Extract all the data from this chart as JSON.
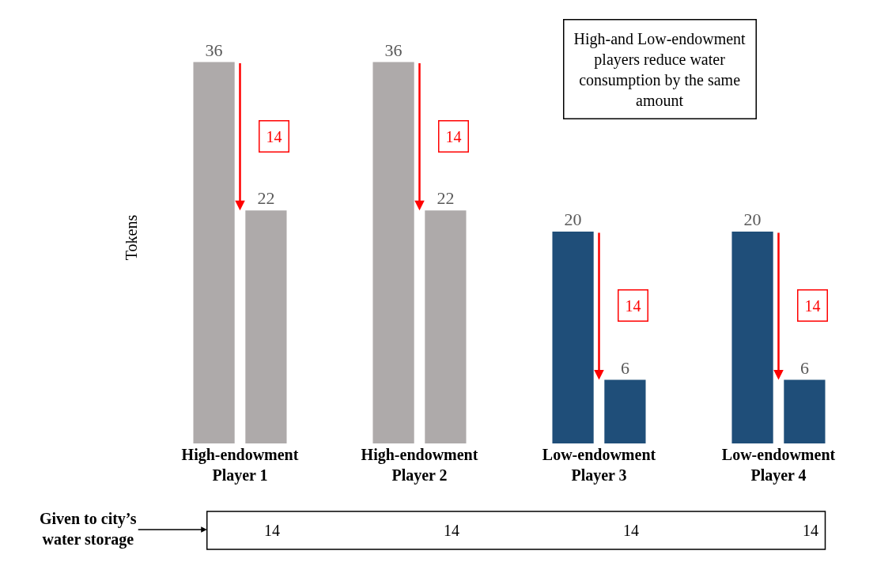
{
  "chart_data": {
    "type": "bar",
    "ylabel": "Tokens",
    "categories": [
      "High-endowment\nPlayer 1",
      "High-endowment\nPlayer 2",
      "Low-endowment\nPlayer 3",
      "Low-endowment\nPlayer 4"
    ],
    "series": [
      {
        "colors": [
          "#aeaaaa",
          "#aeaaaa",
          "#1f4e79",
          "#1f4e79"
        ],
        "values": [
          36,
          36,
          20,
          20
        ]
      },
      {
        "colors": [
          "#aeaaaa",
          "#aeaaaa",
          "#1f4e79",
          "#1f4e79"
        ],
        "values": [
          22,
          22,
          6,
          6
        ]
      }
    ],
    "data_labels": true,
    "tick_labels": "x",
    "grid": false,
    "annotations": [
      "14",
      "14",
      "14",
      "14",
      "High-and Low-endowment\nplayers reduce water\nconsumption by the same\namount",
      "Given to city’s\nwater storage",
      "14",
      "14",
      "14",
      "14"
    ]
  }
}
